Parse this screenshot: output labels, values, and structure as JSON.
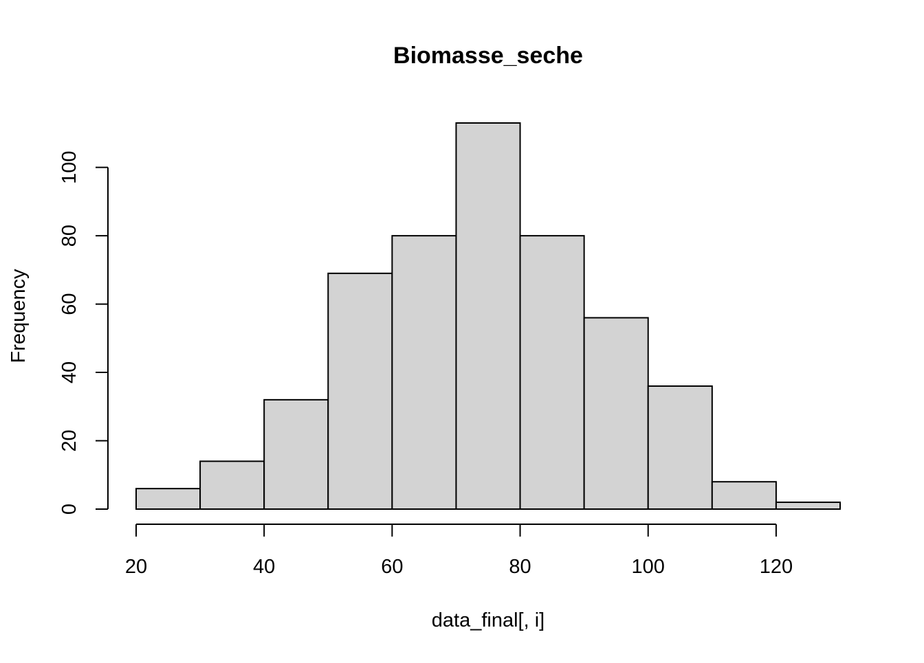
{
  "chart_data": {
    "type": "bar",
    "title": "Biomasse_seche",
    "xlabel": "data_final[, i]",
    "ylabel": "Frequency",
    "bins": [
      {
        "from": 20,
        "to": 30,
        "count": 6
      },
      {
        "from": 30,
        "to": 40,
        "count": 14
      },
      {
        "from": 40,
        "to": 50,
        "count": 32
      },
      {
        "from": 50,
        "to": 60,
        "count": 69
      },
      {
        "from": 60,
        "to": 70,
        "count": 80
      },
      {
        "from": 70,
        "to": 80,
        "count": 113
      },
      {
        "from": 80,
        "to": 90,
        "count": 80
      },
      {
        "from": 90,
        "to": 100,
        "count": 56
      },
      {
        "from": 100,
        "to": 110,
        "count": 36
      },
      {
        "from": 110,
        "to": 120,
        "count": 8
      },
      {
        "from": 120,
        "to": 130,
        "count": 2
      }
    ],
    "xlim": [
      20,
      130
    ],
    "ylim": [
      0,
      113
    ],
    "x_ticks": [
      20,
      40,
      60,
      80,
      100,
      120
    ],
    "y_ticks": [
      0,
      20,
      40,
      60,
      80,
      100
    ],
    "bar_fill": "#d3d3d3",
    "bar_stroke": "#000000",
    "grid": false,
    "legend": false
  }
}
